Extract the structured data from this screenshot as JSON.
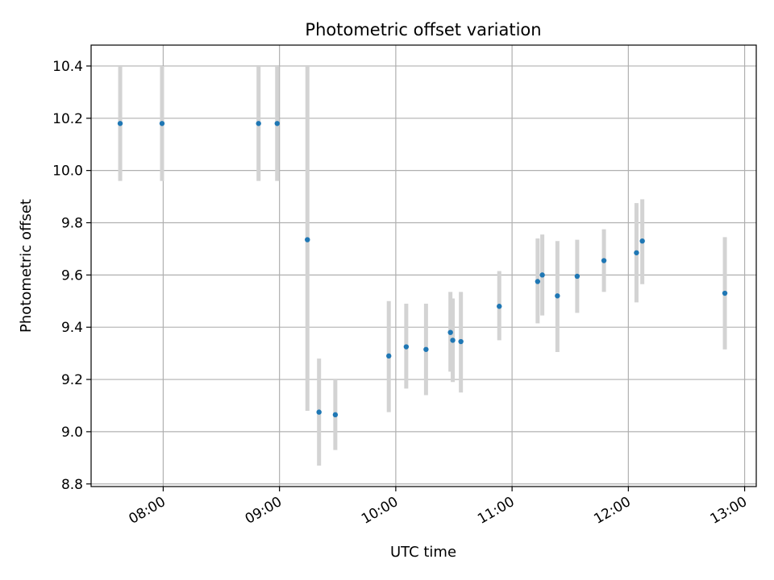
{
  "chart_data": {
    "type": "scatter",
    "title": "Photometric offset variation",
    "xlabel": "UTC time",
    "ylabel": "Photometric offset",
    "grid": true,
    "xlim_hours": [
      7.38,
      13.1
    ],
    "ylim": [
      8.79,
      10.48
    ],
    "x_ticks": [
      {
        "hour": 8,
        "label": "08:00"
      },
      {
        "hour": 9,
        "label": "09:00"
      },
      {
        "hour": 10,
        "label": "10:00"
      },
      {
        "hour": 11,
        "label": "11:00"
      },
      {
        "hour": 12,
        "label": "12:00"
      },
      {
        "hour": 13,
        "label": "13:00"
      }
    ],
    "y_ticks": [
      {
        "value": 8.8,
        "label": "8.8"
      },
      {
        "value": 9.0,
        "label": "9.0"
      },
      {
        "value": 9.2,
        "label": "9.2"
      },
      {
        "value": 9.4,
        "label": "9.4"
      },
      {
        "value": 9.6,
        "label": "9.6"
      },
      {
        "value": 9.8,
        "label": "9.8"
      },
      {
        "value": 10.0,
        "label": "10.0"
      },
      {
        "value": 10.2,
        "label": "10.2"
      },
      {
        "value": 10.4,
        "label": "10.4"
      }
    ],
    "point_color": "#1f77b4",
    "errorbar_color": "#d3d3d3",
    "points": [
      {
        "t": 7.63,
        "y": 10.18,
        "lo": 9.96,
        "hi": 10.4
      },
      {
        "t": 7.99,
        "y": 10.18,
        "lo": 9.96,
        "hi": 10.4
      },
      {
        "t": 8.82,
        "y": 10.18,
        "lo": 9.96,
        "hi": 10.4
      },
      {
        "t": 8.98,
        "y": 10.18,
        "lo": 9.96,
        "hi": 10.4
      },
      {
        "t": 9.24,
        "y": 9.735,
        "lo": 9.08,
        "hi": 10.4
      },
      {
        "t": 9.34,
        "y": 9.075,
        "lo": 8.87,
        "hi": 9.28
      },
      {
        "t": 9.48,
        "y": 9.065,
        "lo": 8.93,
        "hi": 9.2
      },
      {
        "t": 9.94,
        "y": 9.29,
        "lo": 9.075,
        "hi": 9.5
      },
      {
        "t": 10.09,
        "y": 9.325,
        "lo": 9.165,
        "hi": 9.49
      },
      {
        "t": 10.26,
        "y": 9.315,
        "lo": 9.14,
        "hi": 9.49
      },
      {
        "t": 10.47,
        "y": 9.38,
        "lo": 9.23,
        "hi": 9.535
      },
      {
        "t": 10.49,
        "y": 9.35,
        "lo": 9.19,
        "hi": 9.51
      },
      {
        "t": 10.56,
        "y": 9.345,
        "lo": 9.15,
        "hi": 9.535
      },
      {
        "t": 10.89,
        "y": 9.48,
        "lo": 9.35,
        "hi": 9.615
      },
      {
        "t": 11.22,
        "y": 9.575,
        "lo": 9.415,
        "hi": 9.74
      },
      {
        "t": 11.26,
        "y": 9.6,
        "lo": 9.445,
        "hi": 9.755
      },
      {
        "t": 11.39,
        "y": 9.52,
        "lo": 9.305,
        "hi": 9.73
      },
      {
        "t": 11.56,
        "y": 9.595,
        "lo": 9.455,
        "hi": 9.735
      },
      {
        "t": 11.79,
        "y": 9.655,
        "lo": 9.535,
        "hi": 9.775
      },
      {
        "t": 12.07,
        "y": 9.685,
        "lo": 9.495,
        "hi": 9.875
      },
      {
        "t": 12.12,
        "y": 9.73,
        "lo": 9.565,
        "hi": 9.89
      },
      {
        "t": 12.83,
        "y": 9.53,
        "lo": 9.315,
        "hi": 9.745
      }
    ]
  }
}
